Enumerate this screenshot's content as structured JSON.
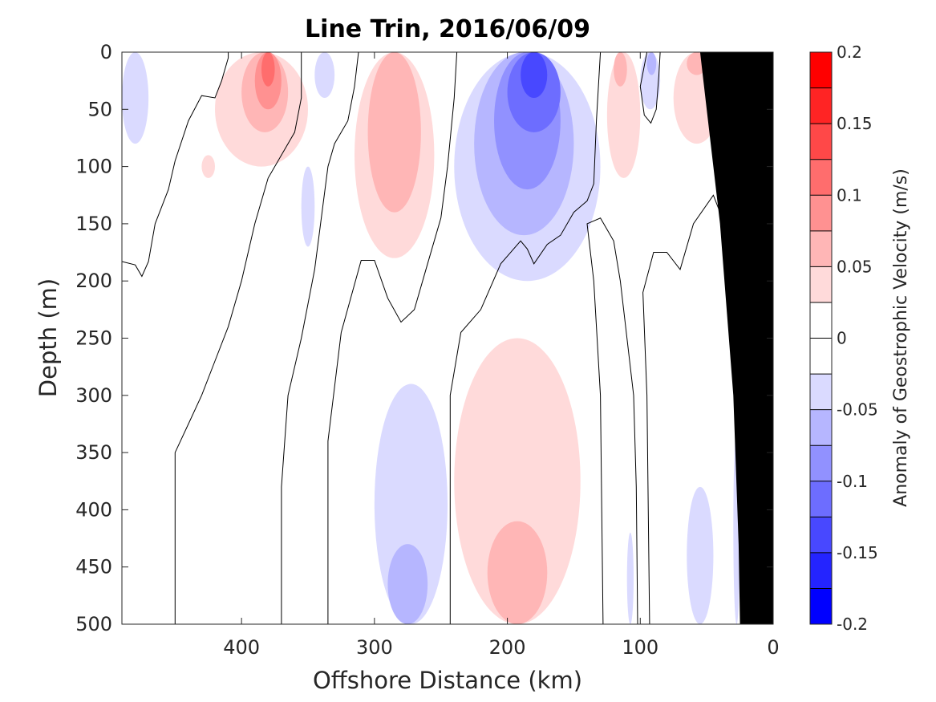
{
  "chart_data": {
    "type": "heatmap",
    "title": "Line Trin, 2016/06/09",
    "xlabel": "Offshore Distance (km)",
    "ylabel": "Depth (m)",
    "xlim": [
      490,
      0
    ],
    "ylim": [
      0,
      500
    ],
    "x_ticks": [
      400,
      300,
      200,
      100,
      0
    ],
    "y_ticks": [
      0,
      50,
      100,
      150,
      200,
      250,
      300,
      350,
      400,
      450,
      500
    ],
    "colorbar": {
      "label": "Anomaly of Geostrophic Velocity (m/s)",
      "range": [
        -0.2,
        0.2
      ],
      "levels": 16,
      "ticks": [
        -0.2,
        -0.15,
        -0.1,
        -0.05,
        0,
        0.05,
        0.1,
        0.15,
        0.2
      ],
      "tick_labels": [
        "-0.2",
        "-0.15",
        "-0.1",
        "-0.05",
        "0",
        "0.05",
        "0.1",
        "0.15",
        "0.2"
      ],
      "colors": [
        "#0000ff",
        "#2424ff",
        "#4848ff",
        "#6d6dff",
        "#9191ff",
        "#b6b6ff",
        "#dadaff",
        "#ffffff",
        "#ffffff",
        "#ffdada",
        "#ffb6b6",
        "#ff9191",
        "#ff6d6d",
        "#ff4848",
        "#ff2424",
        "#ff0000"
      ]
    },
    "cells": [
      {
        "x": [
          490,
          470
        ],
        "y": [
          0,
          80
        ],
        "v": -0.045
      },
      {
        "x": [
          430,
          420
        ],
        "y": [
          90,
          110
        ],
        "v": 0.03
      },
      {
        "x": [
          420,
          350
        ],
        "y": [
          0,
          100
        ],
        "v": 0.035
      },
      {
        "x": [
          400,
          365
        ],
        "y": [
          0,
          70
        ],
        "v": 0.06
      },
      {
        "x": [
          390,
          370
        ],
        "y": [
          0,
          50
        ],
        "v": 0.09
      },
      {
        "x": [
          385,
          375
        ],
        "y": [
          0,
          30
        ],
        "v": 0.12
      },
      {
        "x": [
          355,
          345
        ],
        "y": [
          100,
          170
        ],
        "v": -0.03
      },
      {
        "x": [
          345,
          330
        ],
        "y": [
          0,
          40
        ],
        "v": -0.03
      },
      {
        "x": [
          315,
          255
        ],
        "y": [
          0,
          180
        ],
        "v": 0.035
      },
      {
        "x": [
          305,
          265
        ],
        "y": [
          0,
          140
        ],
        "v": 0.06
      },
      {
        "x": [
          240,
          130
        ],
        "y": [
          0,
          200
        ],
        "v": -0.035
      },
      {
        "x": [
          225,
          150
        ],
        "y": [
          0,
          160
        ],
        "v": -0.06
      },
      {
        "x": [
          210,
          160
        ],
        "y": [
          0,
          120
        ],
        "v": -0.085
      },
      {
        "x": [
          200,
          160
        ],
        "y": [
          0,
          70
        ],
        "v": -0.11
      },
      {
        "x": [
          190,
          170
        ],
        "y": [
          0,
          40
        ],
        "v": -0.14
      },
      {
        "x": [
          125,
          100
        ],
        "y": [
          0,
          110
        ],
        "v": 0.035
      },
      {
        "x": [
          120,
          110
        ],
        "y": [
          0,
          30
        ],
        "v": 0.06
      },
      {
        "x": [
          100,
          85
        ],
        "y": [
          0,
          50
        ],
        "v": -0.035
      },
      {
        "x": [
          95,
          88
        ],
        "y": [
          0,
          20
        ],
        "v": -0.06
      },
      {
        "x": [
          75,
          40
        ],
        "y": [
          0,
          80
        ],
        "v": 0.035
      },
      {
        "x": [
          65,
          50
        ],
        "y": [
          0,
          20
        ],
        "v": 0.06
      },
      {
        "x": [
          30,
          15
        ],
        "y": [
          0,
          300
        ],
        "v": 0.035
      },
      {
        "x": [
          300,
          245
        ],
        "y": [
          290,
          500
        ],
        "v": -0.035
      },
      {
        "x": [
          290,
          260
        ],
        "y": [
          430,
          500
        ],
        "v": -0.06
      },
      {
        "x": [
          240,
          145
        ],
        "y": [
          250,
          500
        ],
        "v": 0.035
      },
      {
        "x": [
          215,
          170
        ],
        "y": [
          410,
          500
        ],
        "v": 0.06
      },
      {
        "x": [
          110,
          105
        ],
        "y": [
          420,
          500
        ],
        "v": -0.03
      },
      {
        "x": [
          65,
          45
        ],
        "y": [
          380,
          500
        ],
        "v": -0.03
      },
      {
        "x": [
          30,
          25
        ],
        "y": [
          330,
          500
        ],
        "v": -0.03
      }
    ],
    "zero_contours": [
      [
        [
          490,
          183
        ],
        [
          480,
          186
        ],
        [
          475,
          196
        ],
        [
          470,
          183
        ],
        [
          465,
          150
        ],
        [
          455,
          120
        ],
        [
          450,
          95
        ],
        [
          440,
          60
        ],
        [
          430,
          38
        ],
        [
          420,
          40
        ],
        [
          415,
          25
        ],
        [
          410,
          5
        ],
        [
          410,
          0
        ]
      ],
      [
        [
          450,
          500
        ],
        [
          450,
          350
        ],
        [
          440,
          325
        ],
        [
          430,
          300
        ],
        [
          420,
          270
        ],
        [
          410,
          240
        ],
        [
          400,
          200
        ],
        [
          390,
          150
        ],
        [
          380,
          110
        ],
        [
          370,
          90
        ],
        [
          360,
          70
        ],
        [
          355,
          40
        ],
        [
          355,
          0
        ]
      ],
      [
        [
          370,
          500
        ],
        [
          370,
          380
        ],
        [
          365,
          300
        ],
        [
          355,
          250
        ],
        [
          345,
          190
        ],
        [
          335,
          100
        ],
        [
          330,
          80
        ],
        [
          320,
          60
        ],
        [
          315,
          30
        ],
        [
          312,
          0
        ]
      ],
      [
        [
          335,
          500
        ],
        [
          335,
          340
        ],
        [
          325,
          245
        ],
        [
          310,
          182
        ],
        [
          300,
          182
        ],
        [
          290,
          215
        ],
        [
          280,
          236
        ],
        [
          270,
          225
        ],
        [
          260,
          185
        ],
        [
          250,
          145
        ],
        [
          245,
          100
        ],
        [
          240,
          40
        ],
        [
          238,
          0
        ]
      ],
      [
        [
          243,
          500
        ],
        [
          243,
          300
        ],
        [
          235,
          245
        ],
        [
          220,
          225
        ],
        [
          205,
          185
        ],
        [
          190,
          165
        ],
        [
          185,
          172
        ],
        [
          180,
          185
        ],
        [
          170,
          168
        ],
        [
          160,
          160
        ],
        [
          150,
          140
        ],
        [
          140,
          130
        ],
        [
          135,
          115
        ],
        [
          133,
          60
        ],
        [
          130,
          0
        ]
      ],
      [
        [
          128,
          500
        ],
        [
          130,
          300
        ],
        [
          135,
          200
        ],
        [
          140,
          150
        ],
        [
          130,
          145
        ],
        [
          120,
          165
        ],
        [
          115,
          200
        ],
        [
          110,
          250
        ],
        [
          105,
          300
        ],
        [
          103,
          380
        ],
        [
          102,
          500
        ]
      ],
      [
        [
          95,
          0
        ],
        [
          100,
          30
        ],
        [
          97,
          55
        ],
        [
          92,
          62
        ],
        [
          88,
          50
        ],
        [
          86,
          20
        ],
        [
          85,
          0
        ]
      ],
      [
        [
          93,
          500
        ],
        [
          95,
          300
        ],
        [
          98,
          210
        ],
        [
          90,
          175
        ],
        [
          80,
          175
        ],
        [
          70,
          190
        ],
        [
          60,
          150
        ],
        [
          45,
          125
        ],
        [
          40,
          140
        ],
        [
          35,
          170
        ],
        [
          28,
          220
        ],
        [
          20,
          250
        ],
        [
          15,
          270
        ],
        [
          0,
          270
        ]
      ]
    ],
    "bathymetry": [
      [
        0,
        0
      ],
      [
        0,
        500
      ],
      [
        25,
        500
      ],
      [
        26,
        430
      ],
      [
        30,
        300
      ],
      [
        40,
        150
      ],
      [
        50,
        50
      ],
      [
        55,
        0
      ]
    ],
    "series_notes": ""
  }
}
